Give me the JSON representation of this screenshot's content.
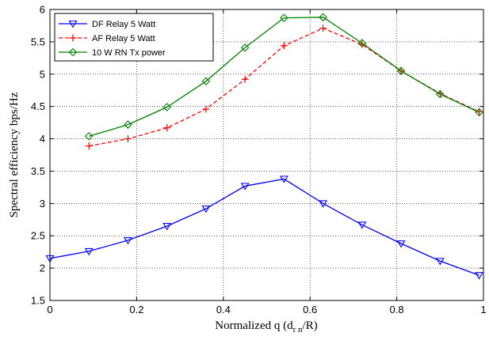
{
  "chart_data": {
    "type": "line",
    "xlabel": "Normalized q (d",
    "xlabel_sub": "r n",
    "xlabel_end": "/R)",
    "ylabel": "Spectral efficiency bps/Hz",
    "xlim": [
      0,
      1
    ],
    "ylim": [
      1.5,
      6
    ],
    "xticks": [
      0,
      0.2,
      0.4,
      0.6,
      0.8,
      1
    ],
    "xtick_labels": [
      "0",
      "0.2",
      "0.4",
      "0.6",
      "0.8",
      "1"
    ],
    "yticks": [
      1.5,
      2,
      2.5,
      3,
      3.5,
      4,
      4.5,
      5,
      5.5,
      6
    ],
    "ytick_labels": [
      "1.5",
      "2",
      "2.5",
      "3",
      "3.5",
      "4",
      "4.5",
      "5",
      "5.5",
      "6"
    ],
    "grid": true,
    "legend_position": "top-left",
    "series": [
      {
        "name": "DF Relay 5 Watt",
        "color": "#0000ff",
        "line_style": "solid",
        "marker": "triangle-down",
        "x": [
          0,
          0.09,
          0.18,
          0.27,
          0.36,
          0.45,
          0.54,
          0.63,
          0.72,
          0.81,
          0.9,
          0.99
        ],
        "y": [
          2.15,
          2.26,
          2.43,
          2.65,
          2.92,
          3.27,
          3.38,
          3.0,
          2.67,
          2.38,
          2.11,
          1.89
        ]
      },
      {
        "name": "AF Relay 5 Watt",
        "color": "#ff0000",
        "line_style": "dashed",
        "marker": "plus",
        "x": [
          0.09,
          0.18,
          0.27,
          0.36,
          0.45,
          0.54,
          0.63,
          0.72,
          0.81,
          0.9,
          0.99
        ],
        "y": [
          3.89,
          4.0,
          4.17,
          4.46,
          4.92,
          5.44,
          5.71,
          5.46,
          5.05,
          4.7,
          4.42
        ]
      },
      {
        "name": "10 W RN Tx power",
        "color": "#008000",
        "line_style": "solid",
        "marker": "diamond",
        "x": [
          0.09,
          0.18,
          0.27,
          0.36,
          0.45,
          0.54,
          0.63,
          0.72,
          0.81,
          0.9,
          0.99
        ],
        "y": [
          4.04,
          4.22,
          4.49,
          4.89,
          5.41,
          5.87,
          5.88,
          5.48,
          5.05,
          4.69,
          4.41
        ]
      }
    ]
  }
}
